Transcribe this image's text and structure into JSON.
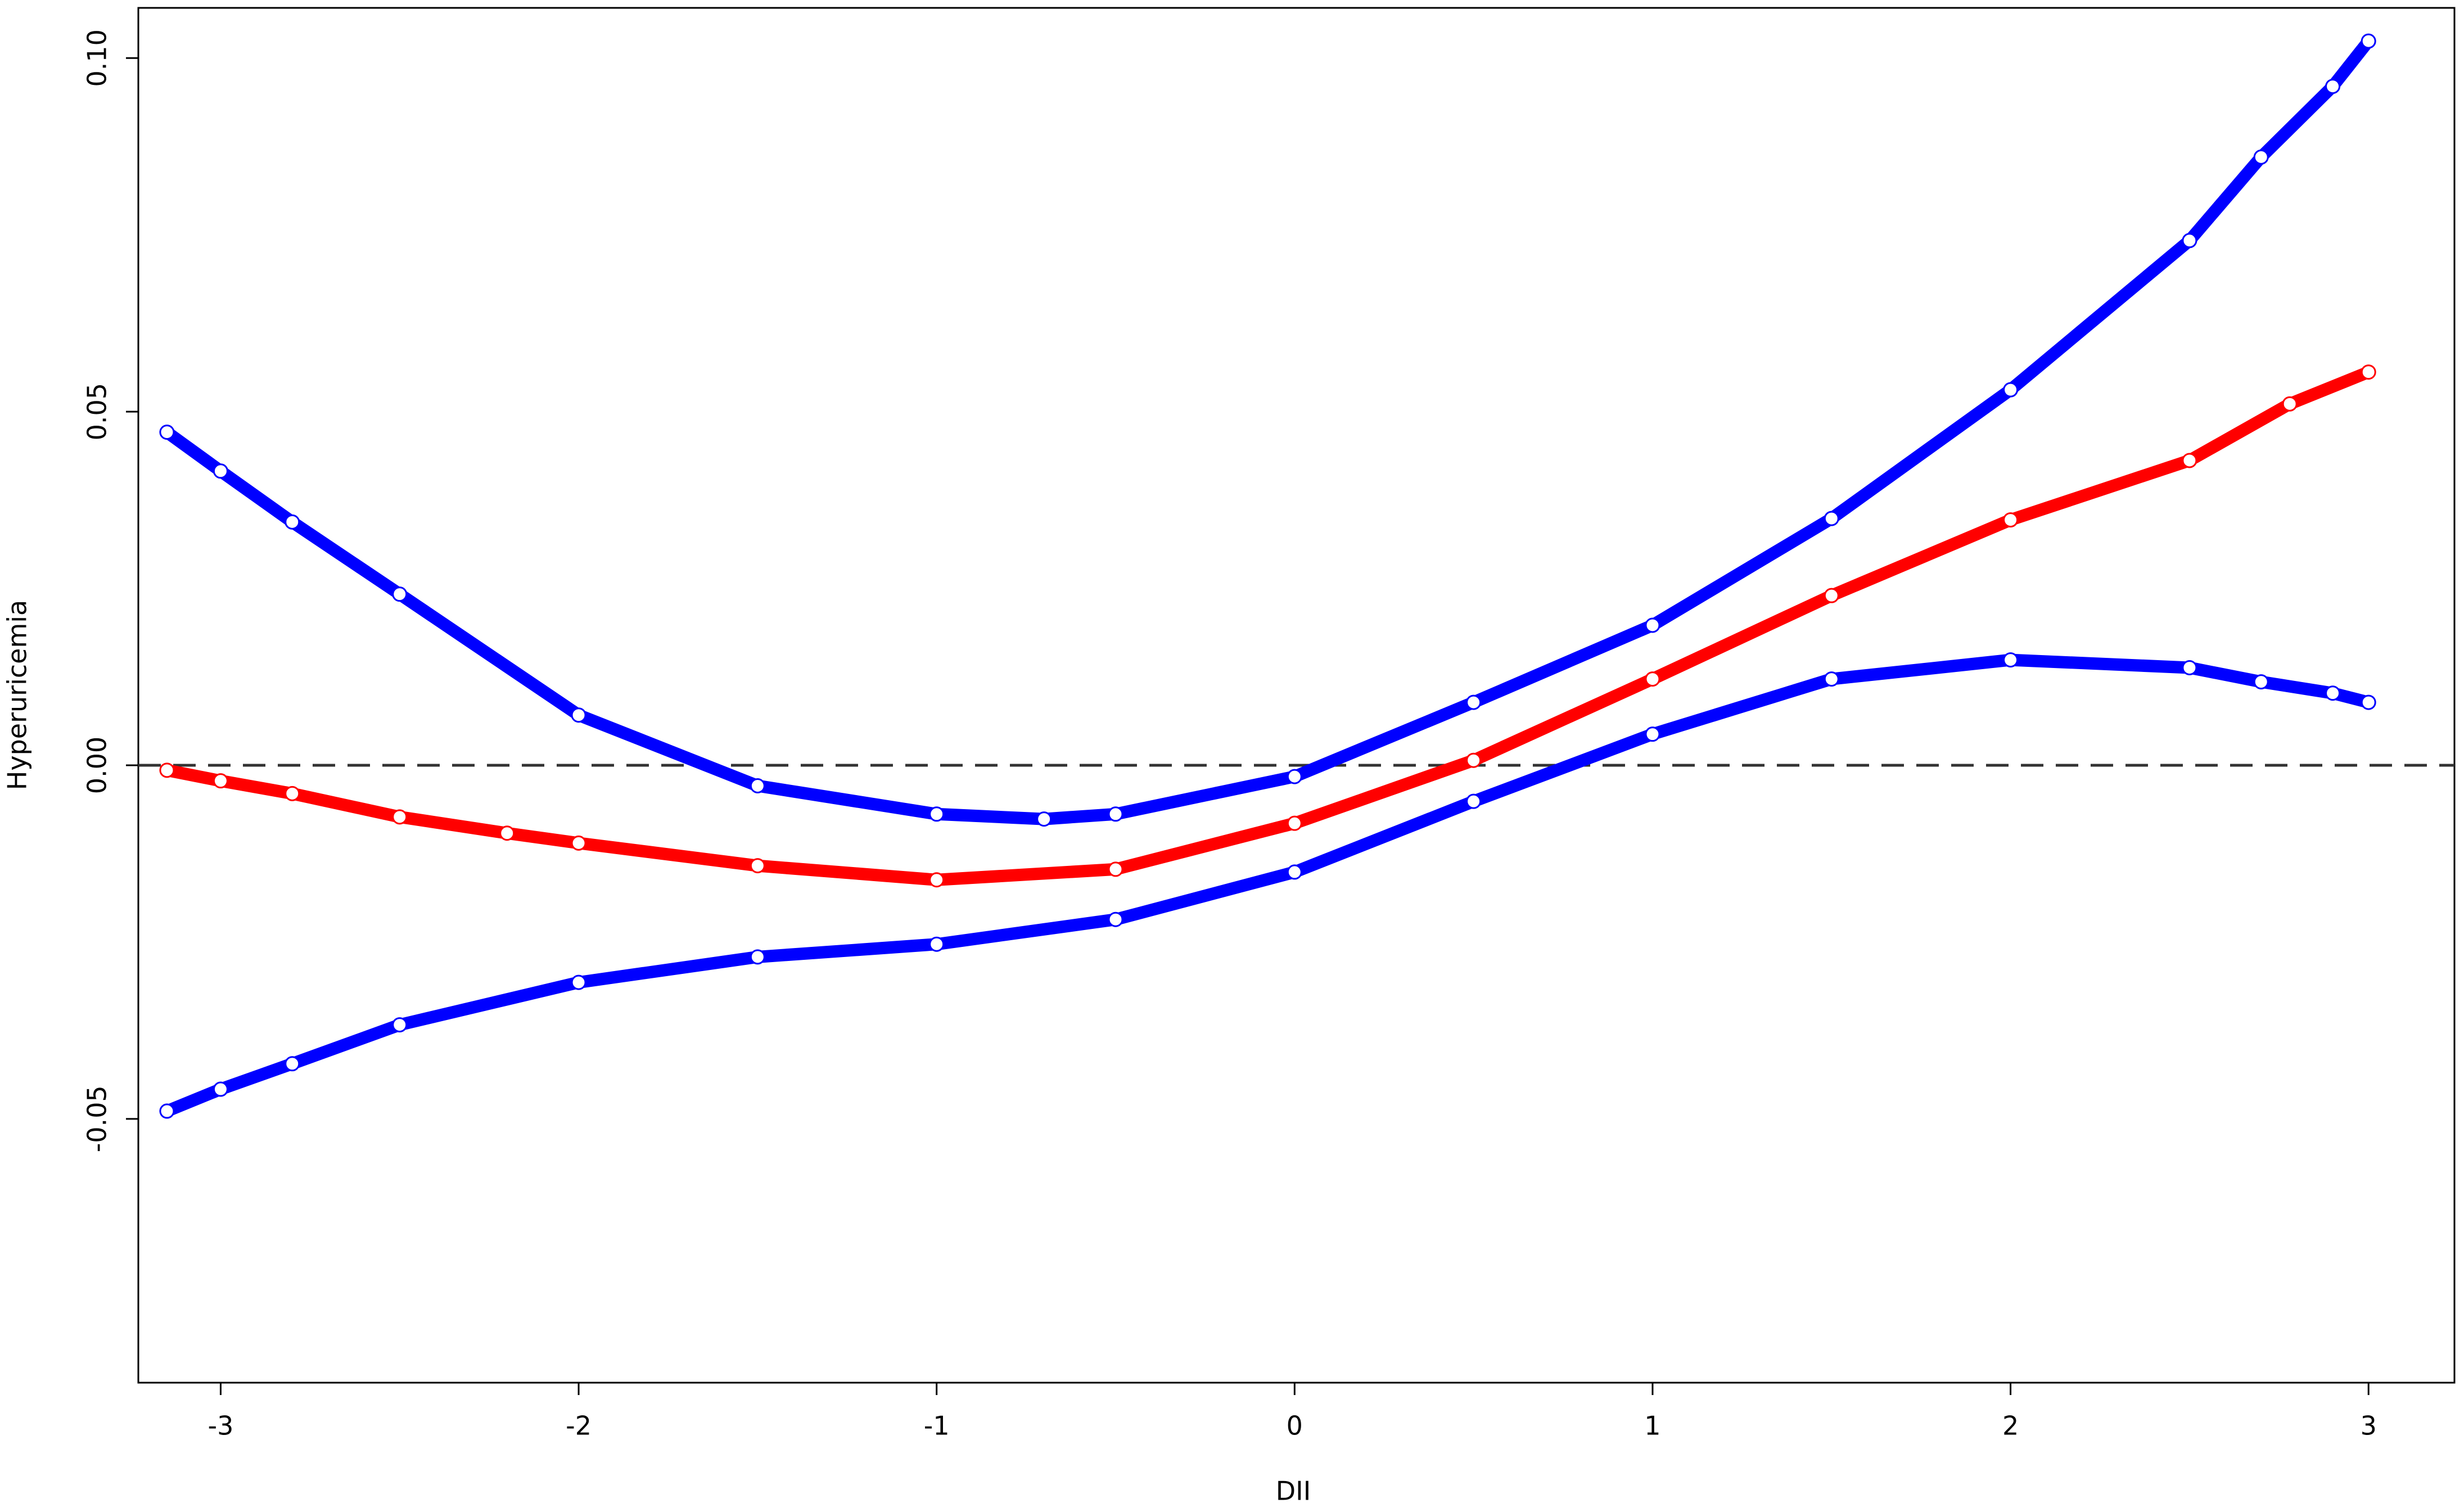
{
  "chart_data": {
    "type": "scatter",
    "x_label": "DII",
    "y_label": "Hyperuricemia",
    "xlim": [
      -3.23,
      3.24
    ],
    "ylim": [
      -0.0873,
      0.1071
    ],
    "xticks": [
      -3,
      -2,
      -1,
      0,
      1,
      2,
      3
    ],
    "yticks": [
      {
        "value": -0.05,
        "label": "-0.05"
      },
      {
        "value": 0,
        "label": "0.00"
      },
      0.05,
      {
        "value": 0.1,
        "label": "0.10"
      }
    ],
    "reference_line": 0,
    "series": [
      {
        "color": "#0000ff",
        "x": [
          -3.15,
          -3.0,
          -2.8,
          -2.5,
          -2.0,
          -1.5,
          -1.0,
          -0.7,
          -0.5,
          0,
          0.5,
          1.0,
          1.5,
          2.0,
          2.5,
          2.7,
          2.9,
          3.0
        ],
        "values": [
          0.0471,
          0.0416,
          0.0344,
          0.0242,
          0.0071,
          -0.0029,
          -0.0069,
          -0.0076,
          -0.0069,
          -0.0016,
          0.0089,
          0.0198,
          0.0349,
          0.0531,
          0.0742,
          0.086,
          0.096,
          0.1024
        ]
      },
      {
        "color": "#ff0000",
        "x": [
          -3.15,
          -3.0,
          -2.8,
          -2.5,
          -2.2,
          -2.0,
          -1.5,
          -1.0,
          -0.5,
          0,
          0.5,
          1.0,
          1.5,
          2.0,
          2.5,
          2.78,
          3.0
        ],
        "values": [
          -0.0007,
          -0.0022,
          -0.004,
          -0.0073,
          -0.0096,
          -0.011,
          -0.0142,
          -0.0162,
          -0.0147,
          -0.0082,
          0.0007,
          0.0122,
          0.024,
          0.0347,
          0.0431,
          0.0511,
          0.0556
        ]
      },
      {
        "color": "#0000ff",
        "x": [
          -3.15,
          -3.0,
          -2.8,
          -2.5,
          -2.0,
          -1.5,
          -1.0,
          -0.5,
          0,
          0.5,
          1.0,
          1.5,
          2.0,
          2.5,
          2.7,
          2.9,
          3.0
        ],
        "values": [
          -0.0489,
          -0.0458,
          -0.0422,
          -0.0367,
          -0.0307,
          -0.0271,
          -0.0253,
          -0.0218,
          -0.0151,
          -0.0051,
          0.0044,
          0.0122,
          0.0149,
          0.0138,
          0.0118,
          0.0102,
          0.0089
        ]
      }
    ]
  }
}
